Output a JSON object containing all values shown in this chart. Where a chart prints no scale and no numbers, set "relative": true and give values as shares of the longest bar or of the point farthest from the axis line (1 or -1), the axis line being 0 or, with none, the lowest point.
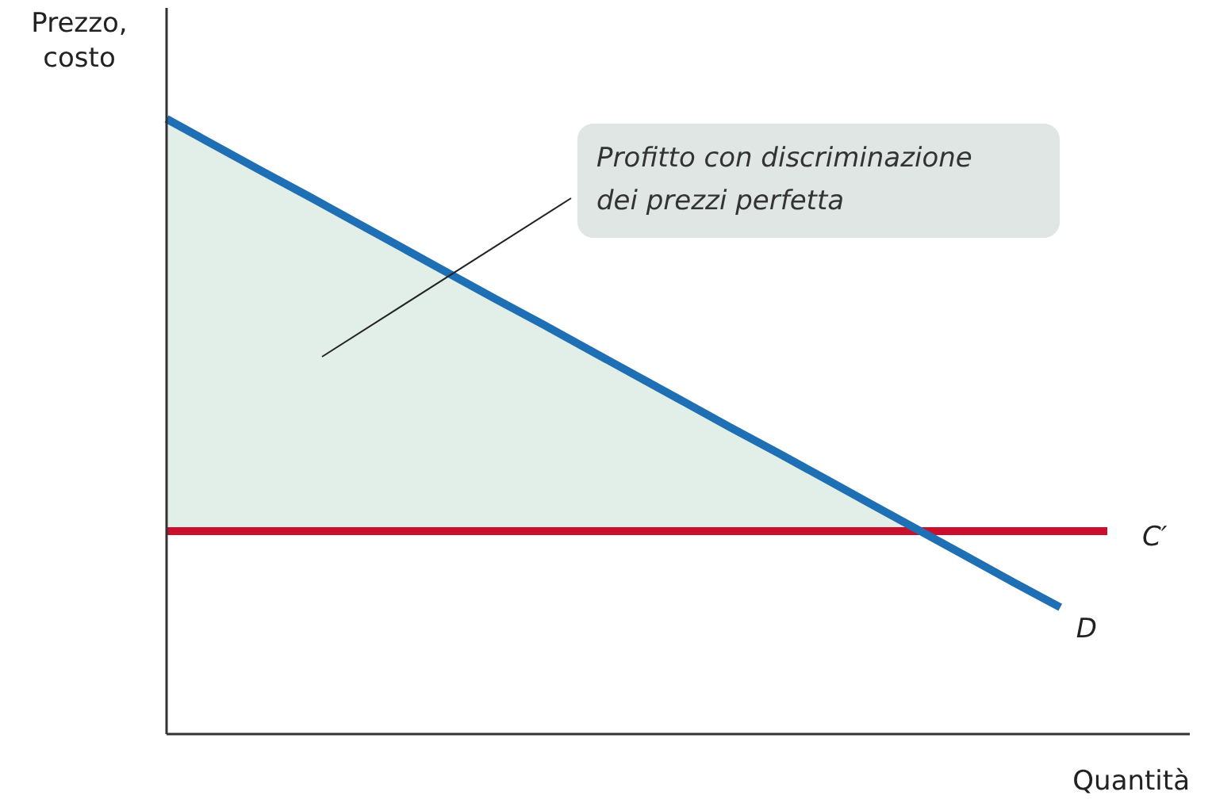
{
  "chart_data": {
    "type": "line",
    "relative": true,
    "xlabel": "Quantità",
    "ylabel": "Prezzo, costo",
    "categories": [
      null,
      null,
      null,
      null,
      null,
      null,
      null,
      null,
      null,
      null,
      null,
      null,
      null,
      null,
      null,
      null,
      null,
      null,
      null,
      null,
      null
    ],
    "series": [
      {
        "name": "C′",
        "color": "#c8102e",
        "values": [
          0.33,
          0.33,
          0.33,
          0.33,
          0.33,
          0.33,
          0.33,
          0.33,
          0.33,
          0.33,
          0.33,
          0.33,
          0.33,
          0.33,
          0.33,
          0.33,
          0.33,
          0.33,
          0.33,
          0.33,
          0.33
        ]
      },
      {
        "name": "D",
        "color": "#1f6fb4",
        "values": [
          1,
          0.958,
          0.916,
          0.875,
          0.833,
          0.791,
          0.749,
          0.707,
          0.666,
          0.624,
          0.582,
          0.54,
          0.498,
          0.457,
          0.415,
          0.373,
          0.331,
          0.289,
          0.247,
          0.206,
          null
        ],
        "upper": [
          1,
          0.958,
          0.916,
          0.875,
          0.833,
          0.791,
          0.749,
          0.707,
          0.666,
          0.624,
          0.582,
          0.54,
          0.498,
          0.457,
          0.415,
          0.373,
          0.331,
          null,
          null,
          null,
          null
        ],
        "lower": [
          0.33,
          0.33,
          0.33,
          0.33,
          0.33,
          0.33,
          0.33,
          0.33,
          0.33,
          0.33,
          0.33,
          0.33,
          0.33,
          0.33,
          0.33,
          0.33,
          0.33,
          null,
          null,
          null,
          null
        ]
      }
    ],
    "annotations": [
      "Profitto con discriminazione\ndei prezzi perfetta"
    ]
  }
}
